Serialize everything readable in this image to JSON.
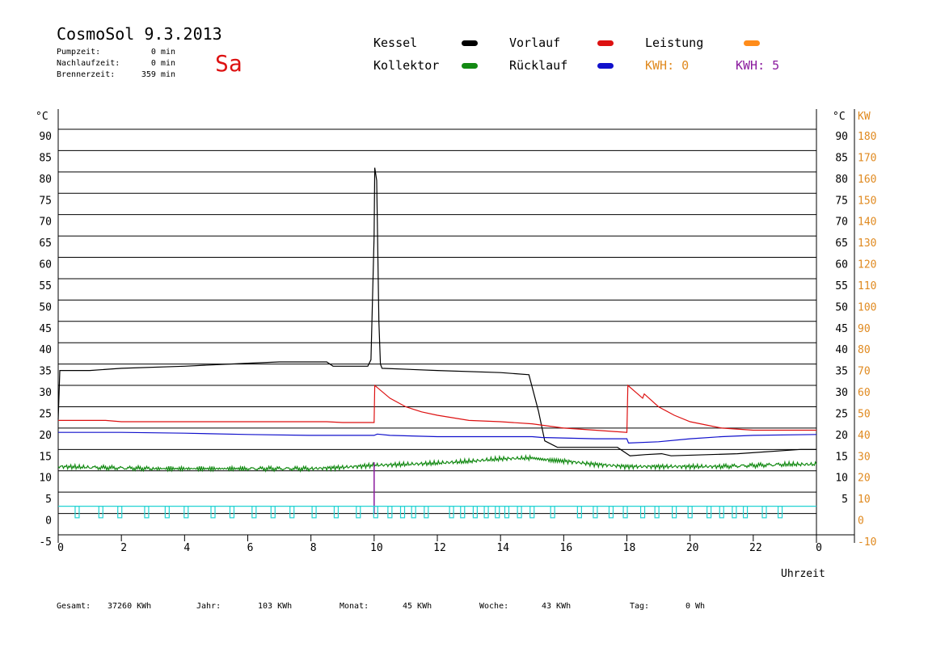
{
  "header": {
    "title": "CosmoSol 9.3.2013",
    "day": "Sa",
    "pumpzeit_label": "Pumpzeit:",
    "pumpzeit_value": "0 min",
    "nachlaufzeit_label": "Nachlaufzeit:",
    "nachlaufzeit_value": "0 min",
    "brennerzeit_label": "Brennerzeit:",
    "brennerzeit_value": "359 min"
  },
  "legend": {
    "kessel": "Kessel",
    "kollektor": "Kollektor",
    "vorlauf": "Vorlauf",
    "ruecklauf": "Rücklauf",
    "leistung": "Leistung",
    "kwh_orange": "KWH: 0",
    "kwh_purple": "KWH: 5"
  },
  "colors": {
    "kessel": "#000000",
    "kollektor": "#138a13",
    "vorlauf": "#dd1111",
    "ruecklauf": "#1111cc",
    "leistung": "#ff8c1a",
    "kwh_purple": "#8a1a9e",
    "pump": "#22d3d3"
  },
  "footer": {
    "gesamt_label": "Gesamt:",
    "gesamt_value": "37260 KWh",
    "jahr_label": "Jahr:",
    "jahr_value": "103 KWh",
    "monat_label": "Monat:",
    "monat_value": "45 KWh",
    "woche_label": "Woche:",
    "woche_value": "43 KWh",
    "tag_label": "Tag:",
    "tag_value": "0 Wh"
  },
  "chart_data": {
    "type": "line",
    "xlabel": "Uhrzeit",
    "xlim": [
      0,
      24
    ],
    "x_ticks": [
      "0",
      "2",
      "4",
      "6",
      "8",
      "10",
      "12",
      "14",
      "16",
      "18",
      "20",
      "22",
      "0"
    ],
    "ylim": [
      -5,
      95
    ],
    "y_left_ticks": [
      "90",
      "85",
      "80",
      "75",
      "70",
      "65",
      "60",
      "55",
      "50",
      "45",
      "40",
      "35",
      "30",
      "25",
      "20",
      "15",
      "10",
      "5",
      "0",
      "-5"
    ],
    "y_left_unit": "°C",
    "y_right_ticks": [
      "90",
      "85",
      "80",
      "75",
      "70",
      "65",
      "60",
      "55",
      "50",
      "45",
      "40",
      "35",
      "30",
      "25",
      "20",
      "15",
      "10",
      "5"
    ],
    "y_right_unit": "°C",
    "y_right2_ticks": [
      "180",
      "170",
      "160",
      "150",
      "140",
      "130",
      "120",
      "110",
      "100",
      "90",
      "80",
      "70",
      "60",
      "50",
      "40",
      "30",
      "20",
      "10",
      "0",
      "-10"
    ],
    "y_right2_unit": "KW",
    "grid": true,
    "series": [
      {
        "name": "Kessel",
        "color": "#000000",
        "points": [
          [
            0,
            22
          ],
          [
            0.05,
            33.5
          ],
          [
            1,
            33.5
          ],
          [
            2,
            34
          ],
          [
            4,
            34.5
          ],
          [
            6,
            35.2
          ],
          [
            7,
            35.5
          ],
          [
            8.5,
            35.5
          ],
          [
            8.7,
            34.5
          ],
          [
            9.8,
            34.5
          ],
          [
            9.9,
            36
          ],
          [
            10,
            65
          ],
          [
            10.02,
            81
          ],
          [
            10.08,
            78
          ],
          [
            10.15,
            45
          ],
          [
            10.2,
            35
          ],
          [
            10.25,
            34
          ],
          [
            12,
            33.5
          ],
          [
            14,
            33
          ],
          [
            14.9,
            32.5
          ],
          [
            15.2,
            24
          ],
          [
            15.4,
            17
          ],
          [
            15.8,
            15.5
          ],
          [
            17.7,
            15.5
          ],
          [
            18.1,
            13.5
          ],
          [
            18.6,
            13.8
          ],
          [
            19.1,
            14
          ],
          [
            19.4,
            13.5
          ],
          [
            21.5,
            14
          ],
          [
            23.5,
            15
          ],
          [
            24,
            15
          ]
        ]
      },
      {
        "name": "Vorlauf",
        "color": "#dd1111",
        "points": [
          [
            0,
            21.8
          ],
          [
            1.5,
            21.8
          ],
          [
            2,
            21.5
          ],
          [
            6,
            21.5
          ],
          [
            8.5,
            21.5
          ],
          [
            9,
            21.3
          ],
          [
            10,
            21.3
          ],
          [
            10.02,
            30
          ],
          [
            10.5,
            27
          ],
          [
            11,
            25
          ],
          [
            11.5,
            23.8
          ],
          [
            12,
            23
          ],
          [
            13,
            21.8
          ],
          [
            14,
            21.5
          ],
          [
            15,
            21
          ],
          [
            16,
            20
          ],
          [
            17,
            19.5
          ],
          [
            18,
            19
          ],
          [
            18.03,
            30
          ],
          [
            18.5,
            27
          ],
          [
            18.55,
            28
          ],
          [
            19,
            25
          ],
          [
            19.5,
            23
          ],
          [
            20,
            21.5
          ],
          [
            21,
            20
          ],
          [
            22,
            19.5
          ],
          [
            24,
            19.5
          ]
        ]
      },
      {
        "name": "Rücklauf",
        "color": "#1111cc",
        "points": [
          [
            0,
            19
          ],
          [
            2,
            19
          ],
          [
            4,
            18.8
          ],
          [
            6,
            18.5
          ],
          [
            8,
            18.3
          ],
          [
            10,
            18.3
          ],
          [
            10.1,
            18.6
          ],
          [
            10.5,
            18.3
          ],
          [
            12,
            18
          ],
          [
            15,
            18
          ],
          [
            15.3,
            17.8
          ],
          [
            17,
            17.5
          ],
          [
            18,
            17.5
          ],
          [
            18.05,
            16.5
          ],
          [
            19,
            16.8
          ],
          [
            20,
            17.5
          ],
          [
            21,
            18
          ],
          [
            22,
            18.3
          ],
          [
            24,
            18.5
          ]
        ]
      },
      {
        "name": "Kollektor",
        "color": "#138a13",
        "points": [
          [
            0,
            11
          ],
          [
            1,
            10.8
          ],
          [
            3,
            10.5
          ],
          [
            6,
            10.5
          ],
          [
            8,
            10.5
          ],
          [
            9,
            10.8
          ],
          [
            10,
            11.3
          ],
          [
            11,
            11.5
          ],
          [
            12,
            11.8
          ],
          [
            13,
            12.2
          ],
          [
            14,
            12.8
          ],
          [
            15,
            13
          ],
          [
            15.5,
            12.5
          ],
          [
            16,
            12.3
          ],
          [
            17,
            11.5
          ],
          [
            18,
            11
          ],
          [
            19,
            11
          ],
          [
            20,
            11
          ],
          [
            21,
            11
          ],
          [
            23,
            11.5
          ],
          [
            24,
            11.5
          ]
        ]
      }
    ],
    "pump_marker_times": [
      0.6,
      1.35,
      1.95,
      2.8,
      3.45,
      4.05,
      4.9,
      5.5,
      6.2,
      6.8,
      7.4,
      8.1,
      8.8,
      9.5,
      10.05,
      10.5,
      10.9,
      11.25,
      11.65,
      12.45,
      12.8,
      13.2,
      13.55,
      13.9,
      14.2,
      14.6,
      15.0,
      15.65,
      16.5,
      17.0,
      17.5,
      17.95,
      18.5,
      18.95,
      19.5,
      20.0,
      20.6,
      21.0,
      21.4,
      21.75,
      22.35,
      22.85
    ],
    "purple_spike": {
      "x": 10.0,
      "y": 12
    }
  }
}
